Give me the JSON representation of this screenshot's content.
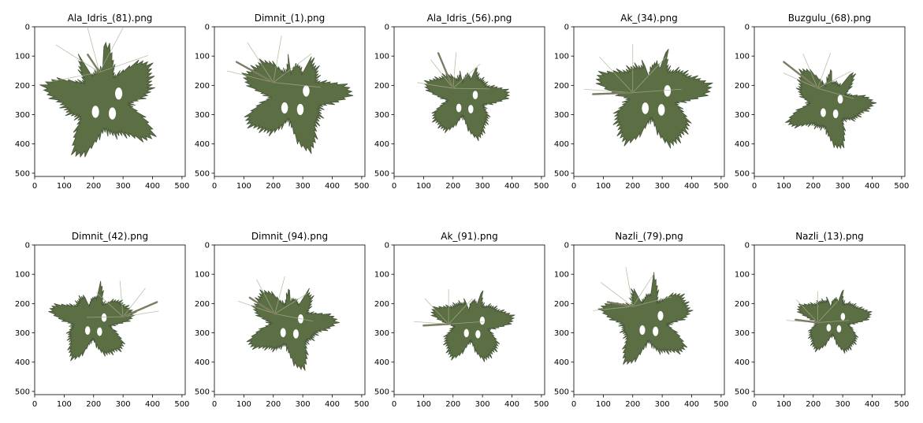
{
  "figure": {
    "columns": 5,
    "rows": 2,
    "leaf_color": "#5c6e44",
    "leaf_dark": "#46553a",
    "vein_color": "#a7b28f",
    "stem_color": "#7d7c62"
  },
  "chart_data": [
    {
      "type": "image",
      "title": "Ala_Idris_(81).png",
      "xlim": [
        0,
        511
      ],
      "ylim": [
        511,
        0
      ],
      "xticks": [
        0,
        100,
        200,
        300,
        400,
        500
      ],
      "yticks": [
        0,
        100,
        200,
        300,
        400,
        500
      ],
      "leaf": {
        "cx": 235,
        "cy": 245,
        "r": 205,
        "angle": -15
      },
      "stem": [
        [
          220,
          155
        ],
        [
          180,
          95
        ]
      ]
    },
    {
      "type": "image",
      "title": "Dimnit_(1).png",
      "xlim": [
        0,
        511
      ],
      "ylim": [
        511,
        0
      ],
      "xticks": [
        0,
        100,
        200,
        300,
        400,
        500
      ],
      "yticks": [
        0,
        100,
        200,
        300,
        400,
        500
      ],
      "leaf": {
        "cx": 265,
        "cy": 235,
        "r": 190,
        "angle": 10
      },
      "stem": [
        [
          200,
          190
        ],
        [
          75,
          120
        ]
      ]
    },
    {
      "type": "image",
      "title": "Ala_Idris_(56).png",
      "xlim": [
        0,
        511
      ],
      "ylim": [
        511,
        0
      ],
      "xticks": [
        0,
        100,
        200,
        300,
        400,
        500
      ],
      "yticks": [
        0,
        100,
        200,
        300,
        400,
        500
      ],
      "leaf": {
        "cx": 240,
        "cy": 245,
        "r": 145,
        "angle": 5
      },
      "stem": [
        [
          200,
          210
        ],
        [
          150,
          90
        ]
      ]
    },
    {
      "type": "image",
      "title": "Ak_(34).png",
      "xlim": [
        0,
        511
      ],
      "ylim": [
        511,
        0
      ],
      "xticks": [
        0,
        100,
        200,
        300,
        400,
        500
      ],
      "yticks": [
        0,
        100,
        200,
        300,
        400,
        500
      ],
      "leaf": {
        "cx": 270,
        "cy": 235,
        "r": 195,
        "angle": 0
      },
      "stem": [
        [
          200,
          225
        ],
        [
          65,
          230
        ]
      ]
    },
    {
      "type": "image",
      "title": "Buzgulu_(68).png",
      "xlim": [
        0,
        511
      ],
      "ylim": [
        511,
        0
      ],
      "xticks": [
        0,
        100,
        200,
        300,
        400,
        500
      ],
      "yticks": [
        0,
        100,
        200,
        300,
        400,
        500
      ],
      "leaf": {
        "cx": 255,
        "cy": 260,
        "r": 150,
        "angle": 20
      },
      "stem": [
        [
          215,
          210
        ],
        [
          100,
          120
        ]
      ]
    },
    {
      "type": "image",
      "title": "Dimnit_(42).png",
      "xlim": [
        0,
        511
      ],
      "ylim": [
        511,
        0
      ],
      "xticks": [
        0,
        100,
        200,
        300,
        400,
        500
      ],
      "yticks": [
        0,
        100,
        200,
        300,
        400,
        500
      ],
      "leaf": {
        "cx": 200,
        "cy": 260,
        "r": 145,
        "angle": -5
      },
      "stem": [
        [
          300,
          245
        ],
        [
          415,
          195
        ]
      ]
    },
    {
      "type": "image",
      "title": "Dimnit_(94).png",
      "xlim": [
        0,
        511
      ],
      "ylim": [
        511,
        0
      ],
      "xticks": [
        0,
        100,
        200,
        300,
        400,
        500
      ],
      "yticks": [
        0,
        100,
        200,
        300,
        400,
        500
      ],
      "leaf": {
        "cx": 255,
        "cy": 265,
        "r": 155,
        "angle": 15
      },
      "stem": [
        [
          205,
          235
        ],
        [
          120,
          180
        ]
      ]
    },
    {
      "type": "image",
      "title": "Ak_(91).png",
      "xlim": [
        0,
        511
      ],
      "ylim": [
        511,
        0
      ],
      "xticks": [
        0,
        100,
        200,
        300,
        400,
        500
      ],
      "yticks": [
        0,
        100,
        200,
        300,
        400,
        500
      ],
      "leaf": {
        "cx": 265,
        "cy": 270,
        "r": 140,
        "angle": 0
      },
      "stem": [
        [
          185,
          270
        ],
        [
          100,
          275
        ]
      ]
    },
    {
      "type": "image",
      "title": "Nazli_(79).png",
      "xlim": [
        0,
        511
      ],
      "ylim": [
        511,
        0
      ],
      "xticks": [
        0,
        100,
        200,
        300,
        400,
        500
      ],
      "yticks": [
        0,
        100,
        200,
        300,
        400,
        500
      ],
      "leaf": {
        "cx": 255,
        "cy": 255,
        "r": 160,
        "angle": -10
      },
      "stem": [
        [
          200,
          210
        ],
        [
          115,
          195
        ]
      ]
    },
    {
      "type": "image",
      "title": "Nazli_(13).png",
      "xlim": [
        0,
        511
      ],
      "ylim": [
        511,
        0
      ],
      "xticks": [
        0,
        100,
        200,
        300,
        400,
        500
      ],
      "yticks": [
        0,
        100,
        200,
        300,
        400,
        500
      ],
      "leaf": {
        "cx": 270,
        "cy": 255,
        "r": 125,
        "angle": 0
      },
      "stem": [
        [
          215,
          265
        ],
        [
          140,
          255
        ]
      ]
    }
  ]
}
